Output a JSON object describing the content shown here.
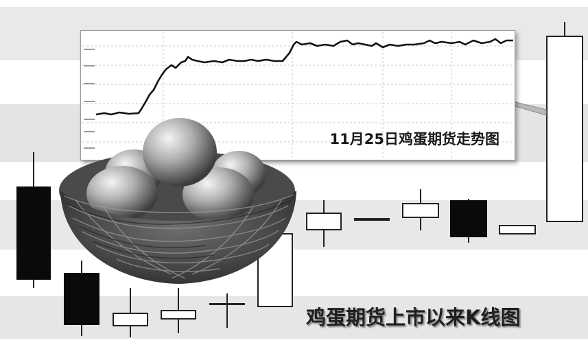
{
  "captions": {
    "inset_title": "11月25日鸡蛋期货走势图",
    "main_title": "鸡蛋期货上市以来K线图"
  },
  "colors": {
    "band": "#e6e6e6",
    "bearish_fill": "#0a0a0a",
    "bullish_fill": "#ffffff",
    "line": "#111111"
  },
  "illustration": {
    "subject": "golden-eggs-in-nest"
  }
}
